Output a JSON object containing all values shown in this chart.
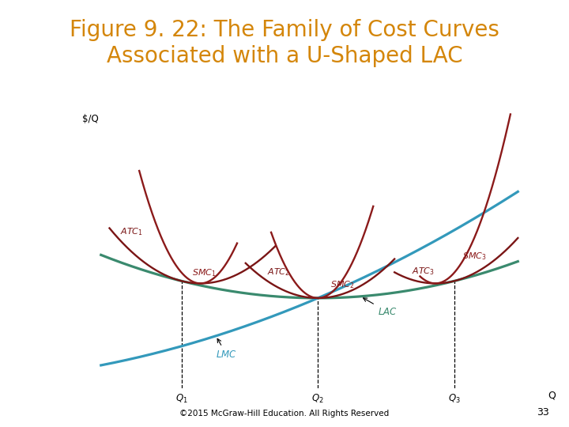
{
  "title_line1": "Figure 9. 22: The Family of Cost Curves",
  "title_line2": "Associated with a U-Shaped LAC",
  "title_color": "#D4860A",
  "title_fontsize": 20,
  "bg_color": "#FFFFFF",
  "ylabel": "$/Q",
  "xlabel": "Q",
  "footer": "©2015 McGraw-Hill Education. All Rights Reserved",
  "page_num": "33",
  "q1": 0.2,
  "q2": 0.52,
  "q3": 0.84,
  "lac_color": "#3A8A6E",
  "lmc_color": "#3399BB",
  "atc_color": "#7A1515",
  "smc_color": "#8B1A1A"
}
